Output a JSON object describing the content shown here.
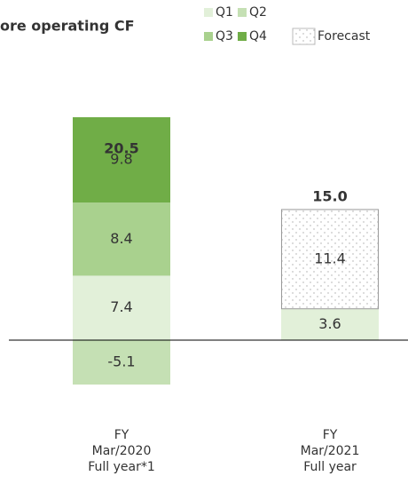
{
  "chart_data": {
    "type": "stacked_bar",
    "title": "ore operating CF",
    "categories": [
      [
        "FY",
        "Mar/2020",
        "Full year*1"
      ],
      [
        "FY",
        "Mar/2021",
        "Full year"
      ]
    ],
    "series": [
      {
        "name": "Q1",
        "color": "#e2f0d9",
        "values": [
          7.4,
          3.6
        ]
      },
      {
        "name": "Q2",
        "color": "#c5e0b4",
        "values": [
          -5.1,
          null
        ]
      },
      {
        "name": "Q3",
        "color": "#a9d18e",
        "values": [
          8.4,
          null
        ]
      },
      {
        "name": "Q4",
        "color": "#70ad47",
        "values": [
          9.8,
          null
        ]
      },
      {
        "name": "Forecast",
        "color": "#ffffff",
        "pattern": "dots",
        "values": [
          null,
          11.4
        ]
      }
    ],
    "totals": [
      20.5,
      15
    ],
    "total_labels": [
      "20.5",
      "15.0"
    ]
  }
}
